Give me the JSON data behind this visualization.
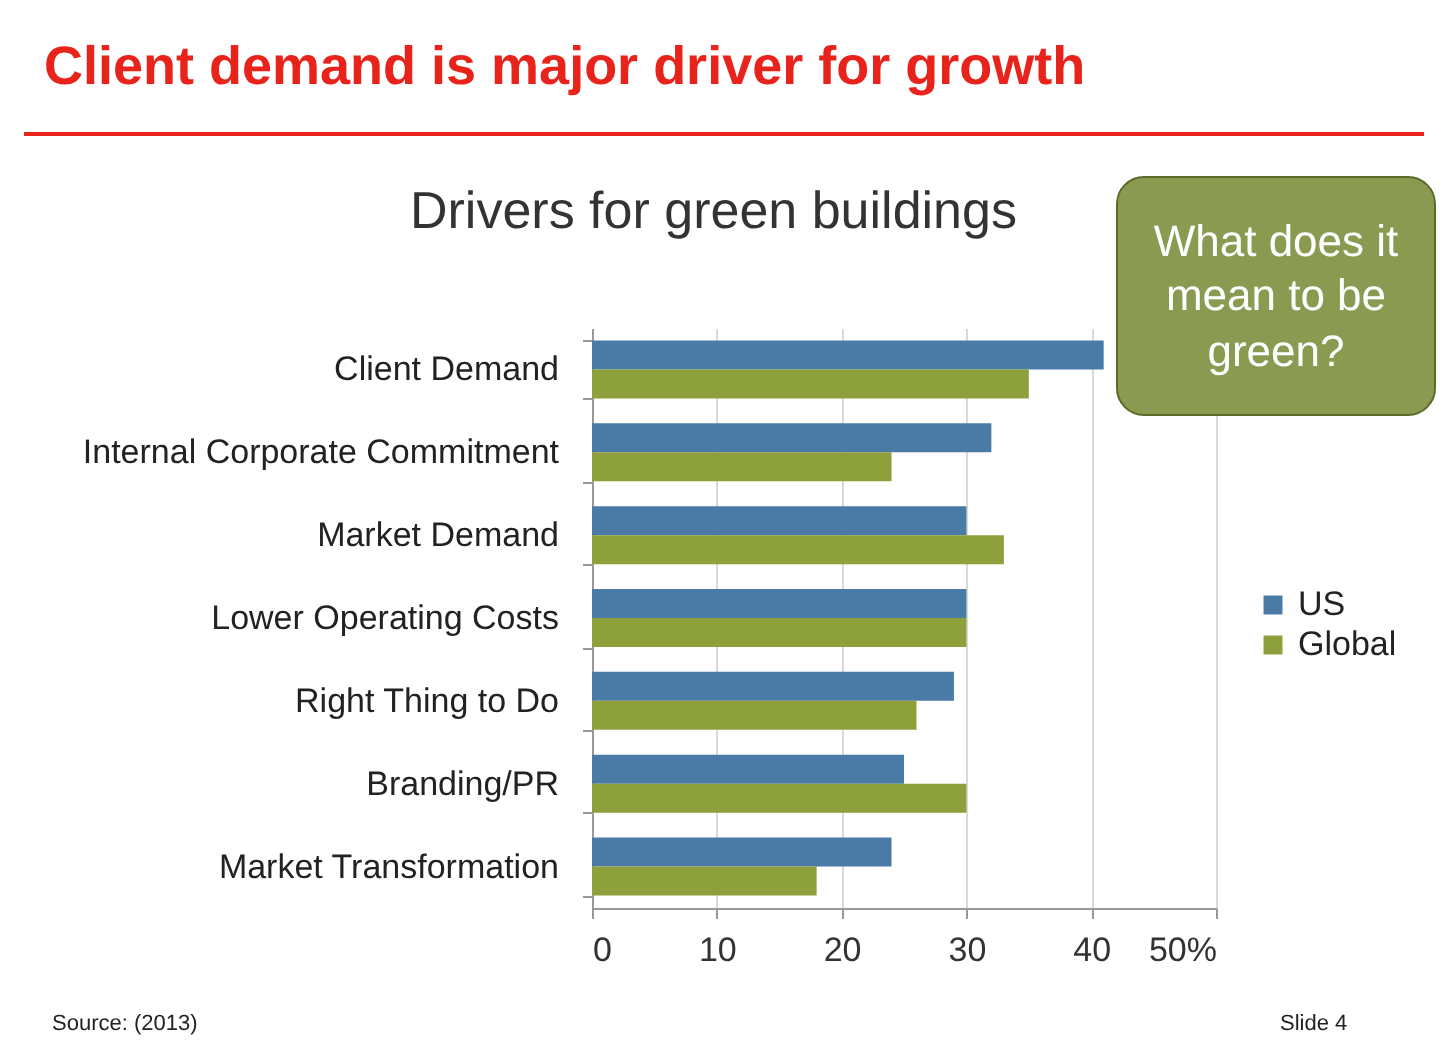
{
  "chart_data": {
    "type": "bar",
    "orientation": "horizontal",
    "title": "Client demand is major driver for growth",
    "subtitle": "Drivers for green buildings",
    "categories": [
      "Client Demand",
      "Internal Corporate Commitment",
      "Market Demand",
      "Lower Operating Costs",
      "Right Thing to Do",
      "Branding/PR",
      "Market Transformation"
    ],
    "series": [
      {
        "name": "US",
        "color": "#4a7ba7",
        "values": [
          41,
          32,
          30,
          30,
          29,
          25,
          24
        ]
      },
      {
        "name": "Global",
        "color": "#8da03c",
        "values": [
          35,
          24,
          33,
          30,
          26,
          30,
          18
        ]
      }
    ],
    "xlim": [
      0,
      50
    ],
    "xticks": [
      0,
      10,
      20,
      30,
      40,
      {
        "value": 50,
        "label": "50%"
      }
    ],
    "grid": "x",
    "legend": "right",
    "annotations": [
      "What does it mean to be green?",
      "Source: (2013)",
      "Slide 4"
    ]
  }
}
